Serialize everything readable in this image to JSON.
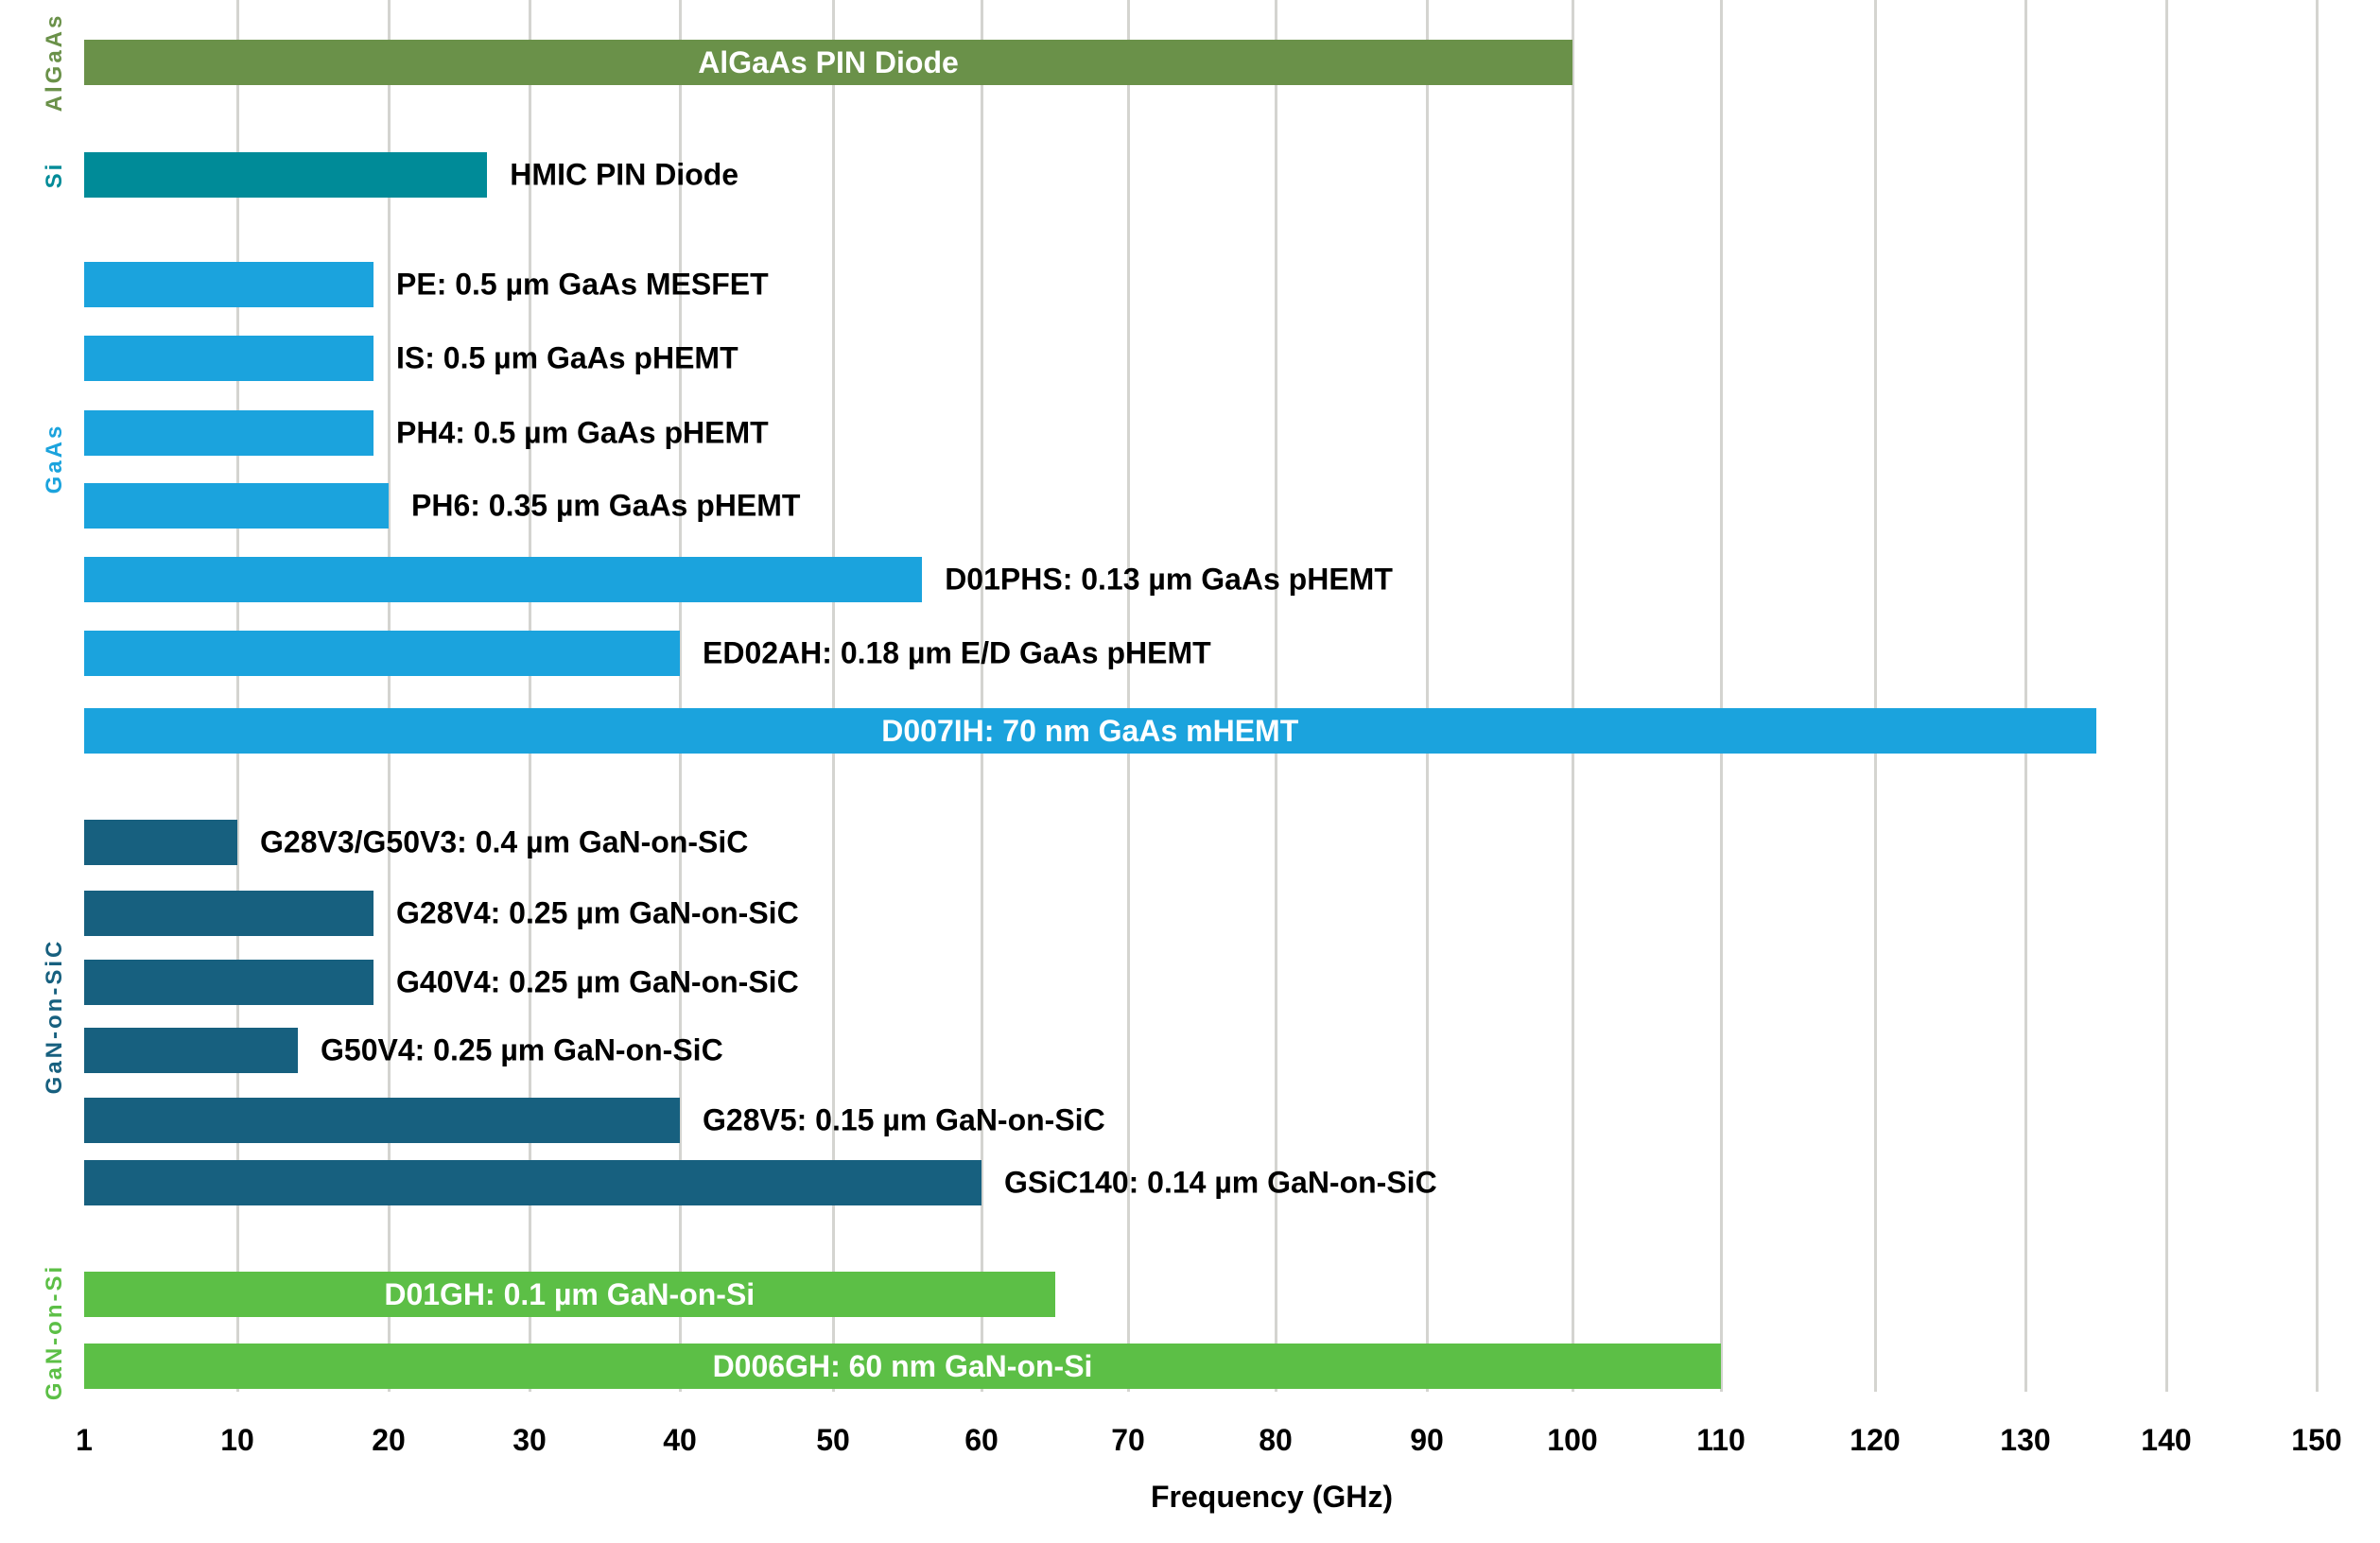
{
  "chart_data": {
    "type": "bar",
    "orientation": "horizontal",
    "title": "",
    "xlabel": "Frequency (GHz)",
    "ylabel": "",
    "xlim": [
      1,
      150
    ],
    "grid": true,
    "x_ticks": [
      1,
      10,
      20,
      30,
      40,
      50,
      60,
      70,
      80,
      90,
      100,
      110,
      120,
      130,
      140,
      150
    ],
    "groups": [
      {
        "name": "AlGaAs",
        "color": "#6a9149",
        "items": [
          {
            "label": "AlGaAs PIN Diode",
            "value": 100,
            "label_inside": true
          }
        ]
      },
      {
        "name": "Si",
        "color": "#008b98",
        "items": [
          {
            "label": "HMIC PIN Diode",
            "value": 27,
            "label_inside": false
          }
        ]
      },
      {
        "name": "GaAs",
        "color": "#1ba3dd",
        "items": [
          {
            "label": "PE: 0.5 µm GaAs MESFET",
            "value": 19,
            "label_inside": false
          },
          {
            "label": "IS: 0.5 µm GaAs pHEMT",
            "value": 19,
            "label_inside": false
          },
          {
            "label": "PH4: 0.5 µm GaAs pHEMT",
            "value": 19,
            "label_inside": false
          },
          {
            "label": "PH6: 0.35 µm GaAs pHEMT",
            "value": 20,
            "label_inside": false
          },
          {
            "label": "D01PHS: 0.13 µm GaAs pHEMT",
            "value": 56,
            "label_inside": false
          },
          {
            "label": "ED02AH: 0.18 µm E/D GaAs pHEMT",
            "value": 40,
            "label_inside": false
          },
          {
            "label": "D007IH: 70 nm GaAs mHEMT",
            "value": 135,
            "label_inside": true
          }
        ]
      },
      {
        "name": "GaN-on-SiC",
        "color": "#17607f",
        "items": [
          {
            "label": "G28V3/G50V3: 0.4 µm GaN-on-SiC",
            "value": 10,
            "label_inside": false
          },
          {
            "label": "G28V4: 0.25 µm GaN-on-SiC",
            "value": 19,
            "label_inside": false
          },
          {
            "label": "G40V4: 0.25 µm GaN-on-SiC",
            "value": 19,
            "label_inside": false
          },
          {
            "label": "G50V4: 0.25 µm GaN-on-SiC",
            "value": 14,
            "label_inside": false
          },
          {
            "label": "G28V5: 0.15 µm GaN-on-SiC",
            "value": 40,
            "label_inside": false
          },
          {
            "label": "GSiC140: 0.14 µm GaN-on-SiC",
            "value": 60,
            "label_inside": false
          }
        ]
      },
      {
        "name": "GaN-on-Si",
        "color": "#5cbf46",
        "items": [
          {
            "label": "D01GH: 0.1 µm  GaN-on-Si",
            "value": 65,
            "label_inside": true
          },
          {
            "label": "D006GH: 60 nm  GaN-on-Si",
            "value": 110,
            "label_inside": true
          }
        ]
      }
    ]
  }
}
